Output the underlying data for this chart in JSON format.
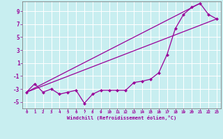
{
  "title": "",
  "xlabel": "Windchill (Refroidissement éolien,°C)",
  "background_color": "#c8eef0",
  "grid_color": "#ffffff",
  "line_color": "#990099",
  "marker": "D",
  "xlim": [
    -0.5,
    23.5
  ],
  "ylim": [
    -6.0,
    10.5
  ],
  "yticks": [
    -5,
    -3,
    -1,
    1,
    3,
    5,
    7,
    9
  ],
  "xtick_vals": [
    0,
    1,
    2,
    3,
    4,
    5,
    6,
    7,
    8,
    9,
    10,
    11,
    12,
    13,
    14,
    15,
    16,
    17,
    18,
    19,
    20,
    21,
    22,
    23
  ],
  "xtick_labels": [
    "0",
    "1",
    "2",
    "3",
    "4",
    "5",
    "6",
    "7",
    "8",
    "9",
    "10",
    "11",
    "12",
    "13",
    "14",
    "15",
    "16",
    "17",
    "18",
    "19",
    "20",
    "21",
    "22",
    "23"
  ],
  "series1_x": [
    0,
    1,
    2,
    3,
    4,
    5,
    6,
    7,
    8,
    9,
    10,
    11,
    12,
    13,
    14,
    15,
    16,
    17,
    18,
    19,
    20,
    21,
    22,
    23
  ],
  "series1_y": [
    -3.5,
    -2.2,
    -3.5,
    -3.0,
    -3.8,
    -3.5,
    -3.2,
    -5.2,
    -3.8,
    -3.2,
    -3.2,
    -3.2,
    -3.2,
    -2.0,
    -1.8,
    -1.5,
    -0.5,
    2.3,
    6.3,
    8.5,
    9.6,
    10.2,
    8.5,
    7.8
  ],
  "series2_x": [
    0,
    23
  ],
  "series2_y": [
    -3.5,
    7.8
  ],
  "series3_x": [
    0,
    21
  ],
  "series3_y": [
    -3.5,
    10.2
  ]
}
